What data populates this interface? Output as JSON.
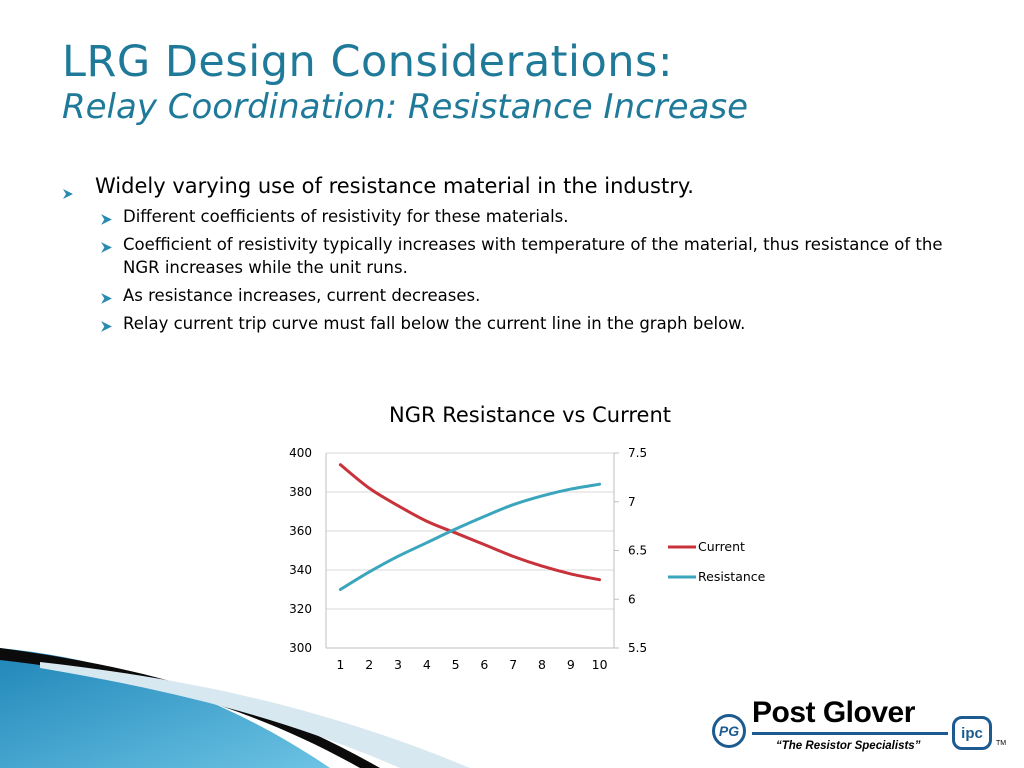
{
  "slide": {
    "title_line1": "LRG Design Considerations:",
    "title_line2": "Relay Coordination: Resistance Increase"
  },
  "bullets": {
    "main": "Widely varying use of resistance material in the industry.",
    "sub": [
      "Different coefficients of resistivity for these materials.",
      "Coefficient of resistivity typically increases with temperature of the material, thus resistance of the NGR increases while the unit runs.",
      "As resistance increases, current decreases.",
      "Relay current trip curve must fall below the current line in the graph below."
    ]
  },
  "chart_data": {
    "type": "line",
    "title": "NGR Resistance vs Current",
    "x": [
      1,
      2,
      3,
      4,
      5,
      6,
      7,
      8,
      9,
      10
    ],
    "ylim_left": [
      300,
      400
    ],
    "yticks_left": [
      300,
      320,
      340,
      360,
      380,
      400
    ],
    "ylim_right": [
      5.5,
      7.5
    ],
    "yticks_right": [
      "5.5",
      "6",
      "6.5",
      "7",
      "7.5"
    ],
    "legend_position": "right",
    "grid": "horizontal",
    "series": [
      {
        "name": "Current",
        "axis": "left",
        "color": "#c8323a",
        "values": [
          394,
          382,
          373,
          365,
          359,
          353,
          347,
          342,
          338,
          335
        ]
      },
      {
        "name": "Resistance",
        "axis": "right",
        "color": "#3aa5bd",
        "values": [
          6.1,
          6.28,
          6.44,
          6.58,
          6.72,
          6.85,
          6.97,
          7.06,
          7.13,
          7.18
        ]
      }
    ]
  },
  "logo": {
    "brand": "Post Glover",
    "tagline": "“The Resistor Specialists”",
    "seal": "PG",
    "ipc": "ipc",
    "tm": "TM"
  },
  "colors": {
    "title": "#1f7a99",
    "bullet_arrow": "#2a8bb0",
    "swoosh_blue": "#2b93c2",
    "logo_blue": "#1c5b8f"
  }
}
